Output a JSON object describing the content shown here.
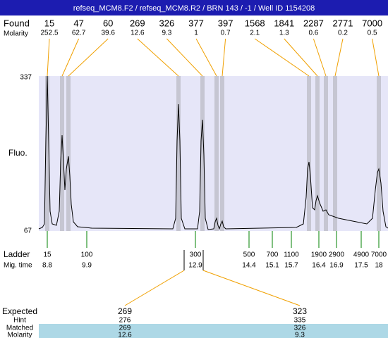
{
  "title": "refseq_MCM8.F2 / refseq_MCM8.R2 / BRN 143 / -1 / Well ID 1154208",
  "found": {
    "label": "Found",
    "values": [
      15,
      47,
      60,
      269,
      326,
      377,
      397,
      1568,
      1841,
      2287,
      2771,
      7000
    ]
  },
  "molarity": {
    "label": "Molarity",
    "values": [
      252.5,
      62.7,
      39.6,
      12.6,
      9.3,
      1,
      0.7,
      2.1,
      1.3,
      0.6,
      0.2,
      0.5
    ]
  },
  "y_axis": {
    "label": "Fluo.",
    "max": 337,
    "min": 67
  },
  "ladder": {
    "label": "Ladder",
    "values": [
      15,
      100,
      300,
      500,
      700,
      1100,
      1900,
      2900,
      4900,
      7000
    ]
  },
  "mig_time": {
    "label": "Mig. time",
    "values": [
      8.8,
      9.9,
      12.9,
      14.4,
      15.1,
      15.7,
      16.4,
      16.9,
      17.5,
      18
    ]
  },
  "expected_table": {
    "rows": [
      {
        "label": "Expected",
        "values": [
          269,
          323
        ]
      },
      {
        "label": "Hint",
        "values": [
          276,
          335
        ]
      },
      {
        "label": "Matched",
        "values": [
          269,
          326
        ]
      },
      {
        "label": "Molarity",
        "values": [
          12.6,
          9.3
        ]
      }
    ]
  }
}
